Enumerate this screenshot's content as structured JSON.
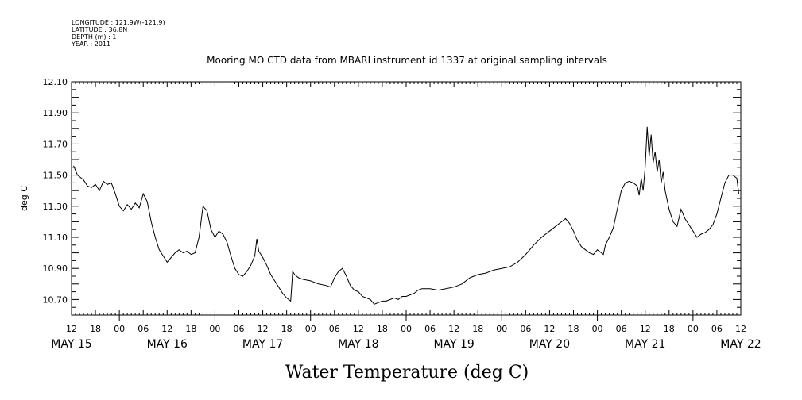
{
  "meta": {
    "longitude": "LONGITUDE : 121.9W(-121.9)",
    "latitude": "LATITUDE : 36.8N",
    "depth": "DEPTH (m) : 1",
    "year": "YEAR : 2011"
  },
  "chart_data": {
    "type": "line",
    "title": "Mooring MO CTD data from MBARI instrument id 1337 at original sampling intervals",
    "xlabel": "Water Temperature (deg C)",
    "ylabel": "deg C",
    "x_units": "hours since 2011-05-15 12:00",
    "xlim": [
      0,
      168
    ],
    "ylim": [
      10.6,
      12.1
    ],
    "y_ticks": [
      "12.10",
      "11.90",
      "11.70",
      "11.50",
      "11.30",
      "11.10",
      "10.90",
      "10.70"
    ],
    "x_ticks": [
      "12",
      "18",
      "00",
      "06",
      "12",
      "18",
      "00",
      "06",
      "12",
      "18",
      "00",
      "06",
      "12",
      "18",
      "00",
      "06",
      "12",
      "18",
      "00",
      "06",
      "12",
      "18",
      "00",
      "06",
      "12",
      "18",
      "00",
      "06",
      "12"
    ],
    "day_labels": [
      "MAY 15",
      "MAY 16",
      "MAY 17",
      "MAY 18",
      "MAY 19",
      "MAY 20",
      "MAY 21",
      "MAY 22"
    ],
    "grid": false,
    "series": [
      {
        "values": [
          [
            0.5,
            11.56
          ],
          [
            1.5,
            11.5
          ],
          [
            3,
            11.47
          ],
          [
            4,
            11.43
          ],
          [
            5,
            11.42
          ],
          [
            6,
            11.44
          ],
          [
            7,
            11.4
          ],
          [
            8,
            11.46
          ],
          [
            9,
            11.44
          ],
          [
            10,
            11.45
          ],
          [
            11,
            11.38
          ],
          [
            12,
            11.3
          ],
          [
            13,
            11.27
          ],
          [
            14,
            11.31
          ],
          [
            15,
            11.28
          ],
          [
            16,
            11.32
          ],
          [
            17,
            11.29
          ],
          [
            18,
            11.38
          ],
          [
            19,
            11.33
          ],
          [
            20,
            11.2
          ],
          [
            21,
            11.1
          ],
          [
            22,
            11.02
          ],
          [
            23,
            10.98
          ],
          [
            24,
            10.94
          ],
          [
            25,
            10.97
          ],
          [
            26,
            11.0
          ],
          [
            27,
            11.02
          ],
          [
            28,
            11.0
          ],
          [
            29,
            11.01
          ],
          [
            30,
            10.99
          ],
          [
            31,
            11.0
          ],
          [
            32,
            11.1
          ],
          [
            33,
            11.3
          ],
          [
            34,
            11.27
          ],
          [
            35,
            11.15
          ],
          [
            36,
            11.1
          ],
          [
            37,
            11.14
          ],
          [
            38,
            11.12
          ],
          [
            39,
            11.07
          ],
          [
            40,
            10.98
          ],
          [
            41,
            10.9
          ],
          [
            42,
            10.86
          ],
          [
            43,
            10.85
          ],
          [
            44,
            10.88
          ],
          [
            45,
            10.92
          ],
          [
            46,
            10.98
          ],
          [
            46.5,
            11.09
          ],
          [
            47,
            11.01
          ],
          [
            48,
            10.97
          ],
          [
            49,
            10.92
          ],
          [
            50,
            10.86
          ],
          [
            51,
            10.82
          ],
          [
            52,
            10.78
          ],
          [
            53,
            10.74
          ],
          [
            54,
            10.71
          ],
          [
            55,
            10.69
          ],
          [
            55.5,
            10.88
          ],
          [
            56,
            10.86
          ],
          [
            57,
            10.84
          ],
          [
            58,
            10.83
          ],
          [
            60,
            10.82
          ],
          [
            62,
            10.8
          ],
          [
            64,
            10.79
          ],
          [
            65,
            10.78
          ],
          [
            66,
            10.84
          ],
          [
            67,
            10.88
          ],
          [
            68,
            10.9
          ],
          [
            69,
            10.85
          ],
          [
            70,
            10.79
          ],
          [
            71,
            10.76
          ],
          [
            72,
            10.75
          ],
          [
            73,
            10.72
          ],
          [
            74,
            10.71
          ],
          [
            75,
            10.7
          ],
          [
            76,
            10.67
          ],
          [
            77,
            10.68
          ],
          [
            78,
            10.69
          ],
          [
            79,
            10.69
          ],
          [
            80,
            10.7
          ],
          [
            81,
            10.71
          ],
          [
            82,
            10.7
          ],
          [
            83,
            10.72
          ],
          [
            84,
            10.72
          ],
          [
            85,
            10.73
          ],
          [
            86,
            10.74
          ],
          [
            87,
            10.76
          ],
          [
            88,
            10.77
          ],
          [
            90,
            10.77
          ],
          [
            92,
            10.76
          ],
          [
            94,
            10.77
          ],
          [
            96,
            10.78
          ],
          [
            98,
            10.8
          ],
          [
            100,
            10.84
          ],
          [
            102,
            10.86
          ],
          [
            104,
            10.87
          ],
          [
            106,
            10.89
          ],
          [
            108,
            10.9
          ],
          [
            110,
            10.91
          ],
          [
            112,
            10.94
          ],
          [
            114,
            10.99
          ],
          [
            116,
            11.05
          ],
          [
            118,
            11.1
          ],
          [
            120,
            11.14
          ],
          [
            122,
            11.18
          ],
          [
            123,
            11.2
          ],
          [
            124,
            11.22
          ],
          [
            125,
            11.19
          ],
          [
            126,
            11.14
          ],
          [
            127,
            11.08
          ],
          [
            128,
            11.04
          ],
          [
            129,
            11.02
          ],
          [
            130,
            11.0
          ],
          [
            131,
            10.99
          ],
          [
            132,
            11.02
          ],
          [
            133,
            11.0
          ],
          [
            133.5,
            10.99
          ],
          [
            134,
            11.05
          ],
          [
            135,
            11.1
          ],
          [
            136,
            11.16
          ],
          [
            137,
            11.28
          ],
          [
            138,
            11.4
          ],
          [
            139,
            11.45
          ],
          [
            140,
            11.46
          ],
          [
            141,
            11.45
          ],
          [
            142,
            11.43
          ],
          [
            142.5,
            11.37
          ],
          [
            143,
            11.48
          ],
          [
            143.5,
            11.4
          ],
          [
            144,
            11.55
          ],
          [
            144.5,
            11.81
          ],
          [
            145,
            11.62
          ],
          [
            145.5,
            11.76
          ],
          [
            146,
            11.58
          ],
          [
            146.5,
            11.65
          ],
          [
            147,
            11.52
          ],
          [
            147.5,
            11.6
          ],
          [
            148,
            11.45
          ],
          [
            148.5,
            11.52
          ],
          [
            149,
            11.4
          ],
          [
            150,
            11.28
          ],
          [
            151,
            11.2
          ],
          [
            152,
            11.17
          ],
          [
            153,
            11.28
          ],
          [
            154,
            11.22
          ],
          [
            155,
            11.18
          ],
          [
            156,
            11.14
          ],
          [
            157,
            11.1
          ],
          [
            158,
            11.12
          ],
          [
            159,
            11.13
          ],
          [
            160,
            11.15
          ],
          [
            161,
            11.18
          ],
          [
            162,
            11.25
          ],
          [
            163,
            11.35
          ],
          [
            164,
            11.45
          ],
          [
            165,
            11.5
          ],
          [
            166,
            11.5
          ],
          [
            167,
            11.48
          ],
          [
            167.5,
            11.38
          ]
        ]
      }
    ]
  }
}
